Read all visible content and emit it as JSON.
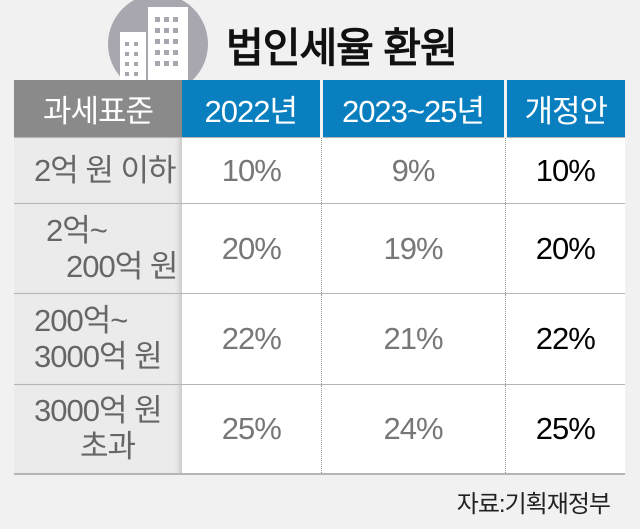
{
  "title": "법인세율 환원",
  "icon": "building-icon",
  "colors": {
    "header_blue": "#0a7fc0",
    "header_gray": "#8a8a8a",
    "background": "#f1f1f1"
  },
  "table": {
    "headers": [
      "과세표준",
      "2022년",
      "2023~25년",
      "개정안"
    ],
    "rows": [
      {
        "label_lines": [
          "2억 원 이하"
        ],
        "y2022": "10%",
        "y2023_25": "9%",
        "proposal": "10%"
      },
      {
        "label_lines": [
          "2억~",
          "200억 원"
        ],
        "y2022": "20%",
        "y2023_25": "19%",
        "proposal": "20%"
      },
      {
        "label_lines": [
          "200억~",
          "3000억 원"
        ],
        "y2022": "22%",
        "y2023_25": "21%",
        "proposal": "22%"
      },
      {
        "label_lines": [
          "3000억 원",
          "초과"
        ],
        "y2022": "25%",
        "y2023_25": "24%",
        "proposal": "25%"
      }
    ]
  },
  "source": "자료:기획재정부"
}
